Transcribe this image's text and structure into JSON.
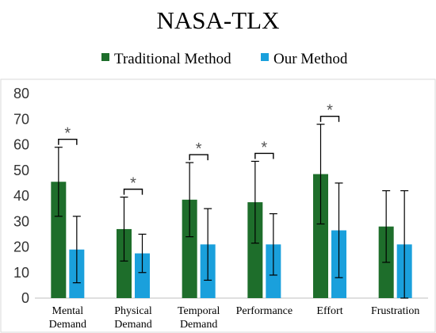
{
  "chart_data": {
    "type": "bar",
    "title": "NASA-TLX",
    "legend_position": "top",
    "categories": [
      [
        "Mental",
        "Demand"
      ],
      [
        "Physical",
        "Demand"
      ],
      [
        "Temporal",
        "Demand"
      ],
      [
        "Performance"
      ],
      [
        "Effort"
      ],
      [
        "Frustration"
      ]
    ],
    "series": [
      {
        "name": "Traditional Method",
        "color": "#1e6e2b",
        "values": [
          45.5,
          27,
          38.5,
          37.5,
          48.5,
          28
        ],
        "errors": [
          13.5,
          12.5,
          14.5,
          16,
          19.5,
          14
        ]
      },
      {
        "name": "Our Method",
        "color": "#1aa0dc",
        "values": [
          19,
          17.5,
          21,
          21,
          26.5,
          21
        ],
        "errors": [
          13,
          7.5,
          14,
          12,
          18.5,
          21
        ]
      }
    ],
    "significance": [
      {
        "category_index": 0,
        "label": "*"
      },
      {
        "category_index": 1,
        "label": "*"
      },
      {
        "category_index": 2,
        "label": "*"
      },
      {
        "category_index": 3,
        "label": "*"
      },
      {
        "category_index": 4,
        "label": "*"
      }
    ],
    "ylim": [
      0,
      80
    ],
    "yticks": [
      0,
      10,
      20,
      30,
      40,
      50,
      60,
      70,
      80
    ],
    "xlabel": "",
    "ylabel": "",
    "grid": false
  }
}
